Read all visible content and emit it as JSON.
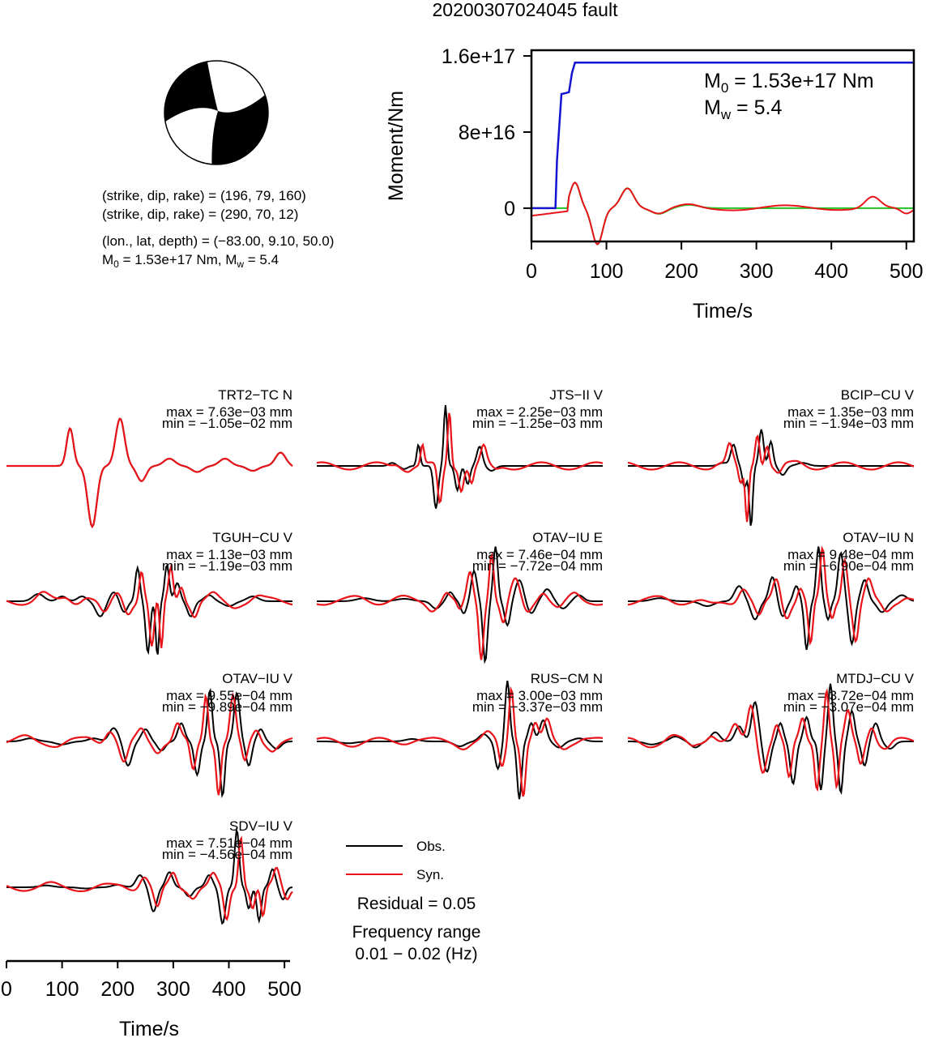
{
  "title": "20200307024045 fault",
  "colors": {
    "obs": "#000000",
    "syn": "#e8141a",
    "moment": "#1414d2",
    "stf": "#22c422"
  },
  "focal": {
    "plane1": "(strike, dip, rake) = (196, 79, 160)",
    "plane2": "(strike, dip, rake) = (290, 70, 12)",
    "location": "(lon., lat, depth) = (−83.00, 9.10, 50.0)",
    "m0_prefix": "M",
    "m0_sub": "0",
    "m0_mid": " = 1.53e+17 Nm, M",
    "mw_sub": "w",
    "mw_end": " = 5.4"
  },
  "chart_data": [
    {
      "type": "line",
      "name": "moment",
      "xlabel": "Time/s",
      "ylabel": "Moment/Nm",
      "xlim": [
        0,
        510
      ],
      "ylim": [
        -3.5e+16,
        1.66e+17
      ],
      "xticks": [
        0,
        100,
        200,
        300,
        400,
        500
      ],
      "xtick_labels": [
        "0",
        "100",
        "200",
        "300",
        "400",
        "500"
      ],
      "yticks": [
        0,
        8e+16,
        1.6e+17
      ],
      "ytick_labels": [
        "0",
        "8e+16",
        "1.6e+17"
      ],
      "annot_m0_main": "M",
      "annot_m0_sub": "0",
      "annot_m0_end": " = 1.53e+17 Nm",
      "annot_mw_main": "M",
      "annot_mw_sub": "w",
      "annot_mw_end": " = 5.4",
      "cumulative": {
        "x": [
          0,
          32,
          34,
          40,
          46,
          50,
          54,
          58,
          510
        ],
        "y": [
          0,
          0,
          5e+16,
          1.2e+17,
          1.21e+17,
          1.22e+17,
          1.42e+17,
          1.53e+17,
          1.53e+17
        ]
      }
    },
    {
      "type": "line",
      "name": "waveforms",
      "xlabel": "Time/s",
      "xlim": [
        0,
        510
      ],
      "xticks": [
        0,
        100,
        200,
        300,
        400,
        500
      ],
      "xtick_labels": [
        "0",
        "100",
        "200",
        "300",
        "400",
        "500"
      ],
      "stations": [
        {
          "name": "TRT2−TC N",
          "max": "max = 7.63e−03 mm",
          "min": "min = −1.05e−02 mm",
          "peak": 0.00763,
          "trough": -0.0105
        },
        {
          "name": "JTS−II V",
          "max": "max = 2.25e−03 mm",
          "min": "min = −1.25e−03 mm",
          "peak": 0.00225,
          "trough": -0.00125
        },
        {
          "name": "BCIP−CU V",
          "max": "max = 1.35e−03 mm",
          "min": "min = −1.94e−03 mm",
          "peak": 0.00135,
          "trough": -0.00194
        },
        {
          "name": "TGUH−CU V",
          "max": "max = 1.13e−03 mm",
          "min": "min = −1.19e−03 mm",
          "peak": 0.00113,
          "trough": -0.00119
        },
        {
          "name": "OTAV−IU E",
          "max": "max = 7.46e−04 mm",
          "min": "min = −7.72e−04 mm",
          "peak": 0.000746,
          "trough": -0.000772
        },
        {
          "name": "OTAV−IU N",
          "max": "max = 9.48e−04 mm",
          "min": "min = −6.90e−04 mm",
          "peak": 0.000948,
          "trough": -0.00069
        },
        {
          "name": "OTAV−IU V",
          "max": "max = 9.55e−04 mm",
          "min": "min = −9.89e−04 mm",
          "peak": 0.000955,
          "trough": -0.000989
        },
        {
          "name": "RUS−CM N",
          "max": "max = 3.00e−03 mm",
          "min": "min = −3.37e−03 mm",
          "peak": 0.003,
          "trough": -0.00337
        },
        {
          "name": "MTDJ−CU V",
          "max": "max = 3.72e−04 mm",
          "min": "min = −3.07e−04 mm",
          "peak": 0.000372,
          "trough": -0.000307
        },
        {
          "name": "SDV−IU V",
          "max": "max = 7.51e−04 mm",
          "min": "min = −4.56e−04 mm",
          "peak": 0.000751,
          "trough": -0.000456
        }
      ]
    }
  ],
  "legend": {
    "obs": "Obs.",
    "syn": "Syn.",
    "residual": "Residual = 0.05",
    "freq_label": "Frequency range",
    "freq_value": "0.01 − 0.02 (Hz)"
  }
}
